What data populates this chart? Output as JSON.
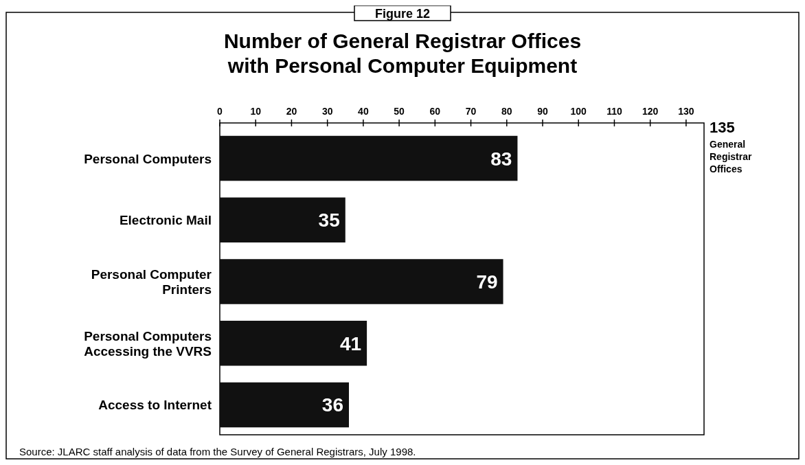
{
  "chart_data": {
    "type": "bar",
    "orientation": "horizontal",
    "title": "Number of General Registrar Offices with Personal Computer Equipment",
    "categories": [
      "Personal Computers",
      "Electronic Mail",
      "Personal Computer Printers",
      "Personal Computers Accessing the VVRS",
      "Access to Internet"
    ],
    "values": [
      83,
      35,
      79,
      41,
      36
    ],
    "color": "#111111",
    "data_labels": true,
    "grid": false,
    "xlim": [
      0,
      135
    ],
    "xticks": [
      0,
      10,
      20,
      30,
      40,
      50,
      60,
      70,
      80,
      90,
      100,
      110,
      120,
      130
    ],
    "annotations": [
      "Figure 12",
      "135",
      "General Registrar Offices",
      "Source:  JLARC staff analysis of data from the Survey of General Registrars, July 1998."
    ]
  }
}
